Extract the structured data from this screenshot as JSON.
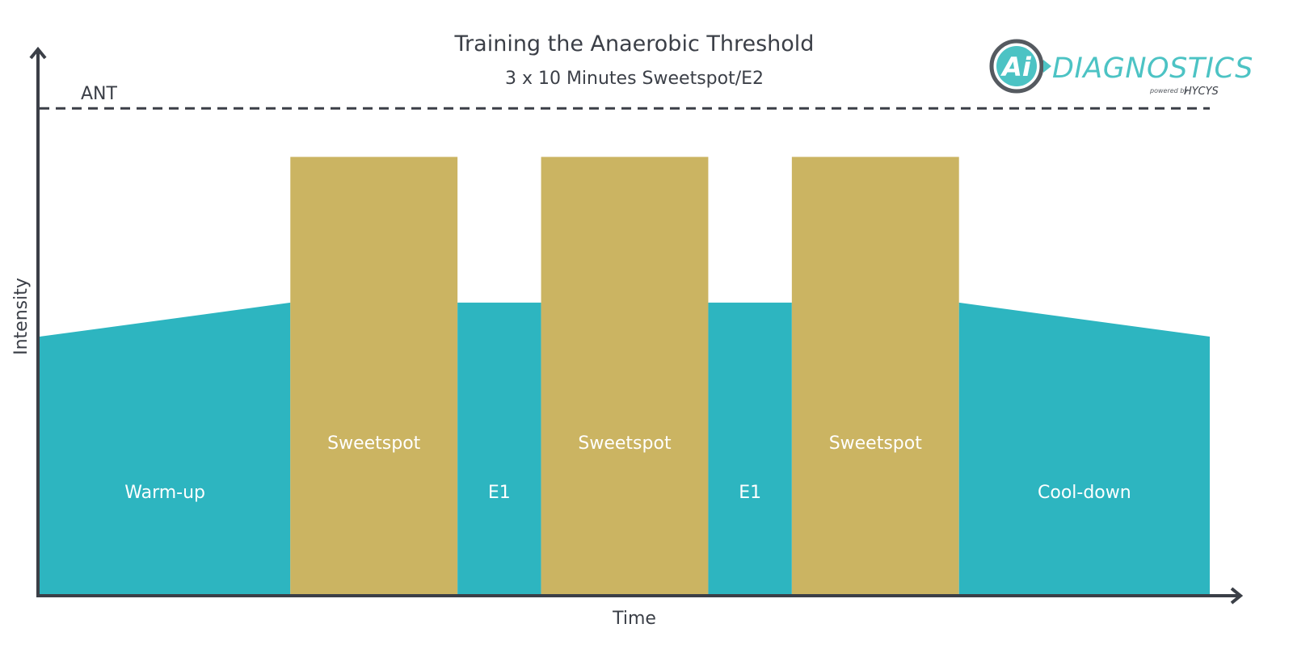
{
  "chart_data": {
    "type": "area",
    "title": "Training the Anaerobic Threshold",
    "subtitle": "3 x 10 Minutes Sweetspot/E2",
    "xlabel": "Time",
    "ylabel": "Intensity",
    "threshold": {
      "label": "ANT",
      "value": 1.0,
      "style": "dashed"
    },
    "ylim": [
      0,
      1.12
    ],
    "xlim": [
      0,
      70
    ],
    "segments": [
      {
        "label": "Warm-up",
        "zone": "base",
        "x": [
          0,
          15
        ],
        "y": [
          0.53,
          0.6
        ]
      },
      {
        "label": "Sweetspot",
        "zone": "sweetspot",
        "x": [
          15,
          25
        ],
        "y": [
          0.9,
          0.9
        ]
      },
      {
        "label": "E1",
        "zone": "base",
        "x": [
          25,
          30
        ],
        "y": [
          0.6,
          0.6
        ]
      },
      {
        "label": "Sweetspot",
        "zone": "sweetspot",
        "x": [
          30,
          40
        ],
        "y": [
          0.9,
          0.9
        ]
      },
      {
        "label": "E1",
        "zone": "base",
        "x": [
          40,
          45
        ],
        "y": [
          0.6,
          0.6
        ]
      },
      {
        "label": "Sweetspot",
        "zone": "sweetspot",
        "x": [
          45,
          55
        ],
        "y": [
          0.9,
          0.9
        ]
      },
      {
        "label": "Cool-down",
        "zone": "base",
        "x": [
          55,
          70
        ],
        "y": [
          0.6,
          0.53
        ]
      }
    ],
    "colors": {
      "base": "#2db5c0",
      "sweetspot": "#cbb462",
      "axis": "#3b3f47",
      "text": "#3b3f47"
    },
    "grid": false,
    "legend": "none"
  },
  "logo": {
    "mark": "Ai",
    "word": "DIAGNOSTICS",
    "powered_by": "powered by",
    "brand": "HYCYS",
    "colors": {
      "accent": "#4cc3c4",
      "ring": "#555a60"
    }
  }
}
